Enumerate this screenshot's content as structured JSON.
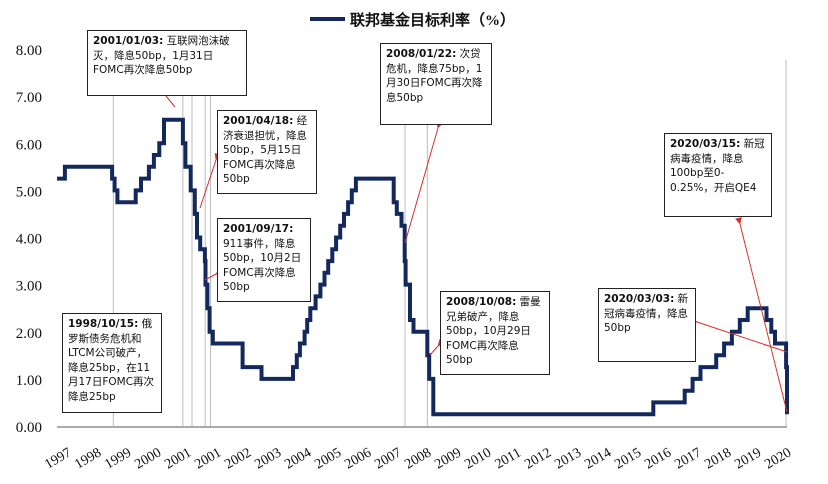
{
  "chart_data": {
    "type": "line",
    "title": "",
    "xlabel": "",
    "ylabel": "",
    "series": [
      {
        "name": "联邦基金目标利率（%）",
        "points": [
          [
            1997.0,
            5.25
          ],
          [
            1997.25,
            5.25
          ],
          [
            1997.25,
            5.5
          ],
          [
            1998.75,
            5.5
          ],
          [
            1998.75,
            5.25
          ],
          [
            1998.83,
            5.25
          ],
          [
            1998.83,
            5.0
          ],
          [
            1998.92,
            5.0
          ],
          [
            1998.92,
            4.75
          ],
          [
            1999.5,
            4.75
          ],
          [
            1999.5,
            5.0
          ],
          [
            1999.67,
            5.0
          ],
          [
            1999.67,
            5.25
          ],
          [
            1999.92,
            5.25
          ],
          [
            1999.92,
            5.5
          ],
          [
            2000.08,
            5.5
          ],
          [
            2000.08,
            5.75
          ],
          [
            2000.25,
            5.75
          ],
          [
            2000.25,
            6.0
          ],
          [
            2000.4,
            6.0
          ],
          [
            2000.4,
            6.5
          ],
          [
            2001.0,
            6.5
          ],
          [
            2001.0,
            6.0
          ],
          [
            2001.08,
            6.0
          ],
          [
            2001.08,
            5.5
          ],
          [
            2001.25,
            5.5
          ],
          [
            2001.25,
            5.0
          ],
          [
            2001.38,
            5.0
          ],
          [
            2001.38,
            4.5
          ],
          [
            2001.45,
            4.5
          ],
          [
            2001.45,
            4.0
          ],
          [
            2001.55,
            4.0
          ],
          [
            2001.55,
            3.75
          ],
          [
            2001.7,
            3.75
          ],
          [
            2001.7,
            3.5
          ],
          [
            2001.72,
            3.5
          ],
          [
            2001.72,
            3.0
          ],
          [
            2001.78,
            3.0
          ],
          [
            2001.78,
            2.5
          ],
          [
            2001.85,
            2.5
          ],
          [
            2001.85,
            2.0
          ],
          [
            2001.95,
            2.0
          ],
          [
            2001.95,
            1.75
          ],
          [
            2002.9,
            1.75
          ],
          [
            2002.9,
            1.25
          ],
          [
            2003.5,
            1.25
          ],
          [
            2003.5,
            1.0
          ],
          [
            2004.5,
            1.0
          ],
          [
            2004.5,
            1.25
          ],
          [
            2004.62,
            1.25
          ],
          [
            2004.62,
            1.5
          ],
          [
            2004.72,
            1.5
          ],
          [
            2004.72,
            1.75
          ],
          [
            2004.87,
            1.75
          ],
          [
            2004.87,
            2.0
          ],
          [
            2004.95,
            2.0
          ],
          [
            2004.95,
            2.25
          ],
          [
            2005.05,
            2.25
          ],
          [
            2005.05,
            2.5
          ],
          [
            2005.22,
            2.5
          ],
          [
            2005.22,
            2.75
          ],
          [
            2005.37,
            2.75
          ],
          [
            2005.37,
            3.0
          ],
          [
            2005.5,
            3.0
          ],
          [
            2005.5,
            3.25
          ],
          [
            2005.62,
            3.25
          ],
          [
            2005.62,
            3.5
          ],
          [
            2005.75,
            3.5
          ],
          [
            2005.75,
            3.75
          ],
          [
            2005.87,
            3.75
          ],
          [
            2005.87,
            4.0
          ],
          [
            2006.0,
            4.0
          ],
          [
            2006.0,
            4.25
          ],
          [
            2006.12,
            4.25
          ],
          [
            2006.12,
            4.5
          ],
          [
            2006.25,
            4.5
          ],
          [
            2006.25,
            4.75
          ],
          [
            2006.37,
            4.75
          ],
          [
            2006.37,
            5.0
          ],
          [
            2006.5,
            5.0
          ],
          [
            2006.5,
            5.25
          ],
          [
            2007.7,
            5.25
          ],
          [
            2007.7,
            4.75
          ],
          [
            2007.8,
            4.75
          ],
          [
            2007.8,
            4.5
          ],
          [
            2007.95,
            4.5
          ],
          [
            2007.95,
            4.25
          ],
          [
            2008.05,
            4.25
          ],
          [
            2008.05,
            3.5
          ],
          [
            2008.08,
            3.5
          ],
          [
            2008.08,
            3.0
          ],
          [
            2008.22,
            3.0
          ],
          [
            2008.22,
            2.25
          ],
          [
            2008.33,
            2.25
          ],
          [
            2008.33,
            2.0
          ],
          [
            2008.77,
            2.0
          ],
          [
            2008.77,
            1.5
          ],
          [
            2008.83,
            1.5
          ],
          [
            2008.83,
            1.0
          ],
          [
            2008.96,
            1.0
          ],
          [
            2008.96,
            0.25
          ],
          [
            2015.95,
            0.25
          ],
          [
            2015.95,
            0.5
          ],
          [
            2016.95,
            0.5
          ],
          [
            2016.95,
            0.75
          ],
          [
            2017.2,
            0.75
          ],
          [
            2017.2,
            1.0
          ],
          [
            2017.45,
            1.0
          ],
          [
            2017.45,
            1.25
          ],
          [
            2017.95,
            1.25
          ],
          [
            2017.95,
            1.5
          ],
          [
            2018.2,
            1.5
          ],
          [
            2018.2,
            1.75
          ],
          [
            2018.45,
            1.75
          ],
          [
            2018.45,
            2.0
          ],
          [
            2018.7,
            2.0
          ],
          [
            2018.7,
            2.25
          ],
          [
            2018.95,
            2.25
          ],
          [
            2018.95,
            2.5
          ],
          [
            2019.55,
            2.5
          ],
          [
            2019.55,
            2.25
          ],
          [
            2019.7,
            2.25
          ],
          [
            2019.7,
            2.0
          ],
          [
            2019.82,
            2.0
          ],
          [
            2019.82,
            1.75
          ],
          [
            2020.17,
            1.75
          ],
          [
            2020.17,
            1.25
          ],
          [
            2020.2,
            1.25
          ],
          [
            2020.2,
            0.25
          ]
        ]
      }
    ],
    "xlim": [
      1997,
      2020.2
    ],
    "ylim": [
      0,
      8
    ],
    "yticks": [
      "0.00",
      "1.00",
      "2.00",
      "3.00",
      "4.00",
      "5.00",
      "6.00",
      "7.00",
      "8.00"
    ],
    "xticks": [
      "1997",
      "1998",
      "1999",
      "2000",
      "2001",
      "2001",
      "2002",
      "2003",
      "2004",
      "2005",
      "2006",
      "2007",
      "2008",
      "2009",
      "2010",
      "2011",
      "2012",
      "2013",
      "2014",
      "2015",
      "2016",
      "2017",
      "2018",
      "2019",
      "2020"
    ],
    "event_dates": [
      1998.79,
      2001.0,
      2001.29,
      2001.71,
      2001.88,
      2008.06,
      2008.77,
      2020.17
    ],
    "annotations": [
      {
        "title": "1998/10/15:",
        "text": "俄罗斯债务危机和LTCM公司破产，降息25bp，在11月17日FOMC再次降息25bp"
      },
      {
        "title": "2001/01/03:",
        "text": "互联网泡沫破灭，降息50bp，1月31日FOMC再次降息50bp"
      },
      {
        "title": "2001/04/18:",
        "text": "经济衰退担忧，降息50bp，5月15日FOMC再次降息50bp"
      },
      {
        "title": "2001/09/17:",
        "text": "911事件，降息50bp，10月2日FOMC再次降息50bp"
      },
      {
        "title": "2008/01/22:",
        "text": "次贷危机，降息75bp，1月30日FOMC再次降息50bp"
      },
      {
        "title": "2008/10/08:",
        "text": "雷曼兄弟破产，降息50bp，10月29日FOMC再次降息50bp"
      },
      {
        "title": "2020/03/03:",
        "text": "新冠病毒疫情，降息50bp"
      },
      {
        "title": "2020/03/15:",
        "text": "新冠病毒疫情，降息100bp至0-0.25%，开启QE4"
      }
    ],
    "line_color": "#13295e",
    "arrow_color": "#d2302c",
    "grid": false,
    "legend": "top-center"
  }
}
